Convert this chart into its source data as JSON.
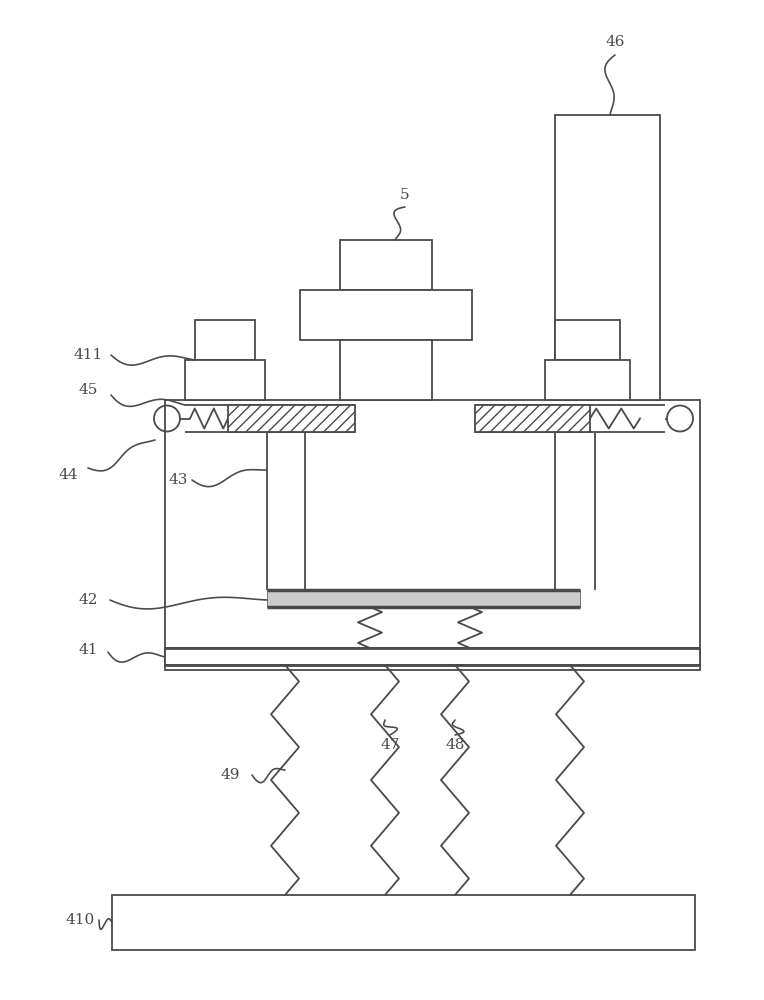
{
  "bg_color": "#ffffff",
  "lc": "#4a4a4a",
  "lw": 1.3
}
